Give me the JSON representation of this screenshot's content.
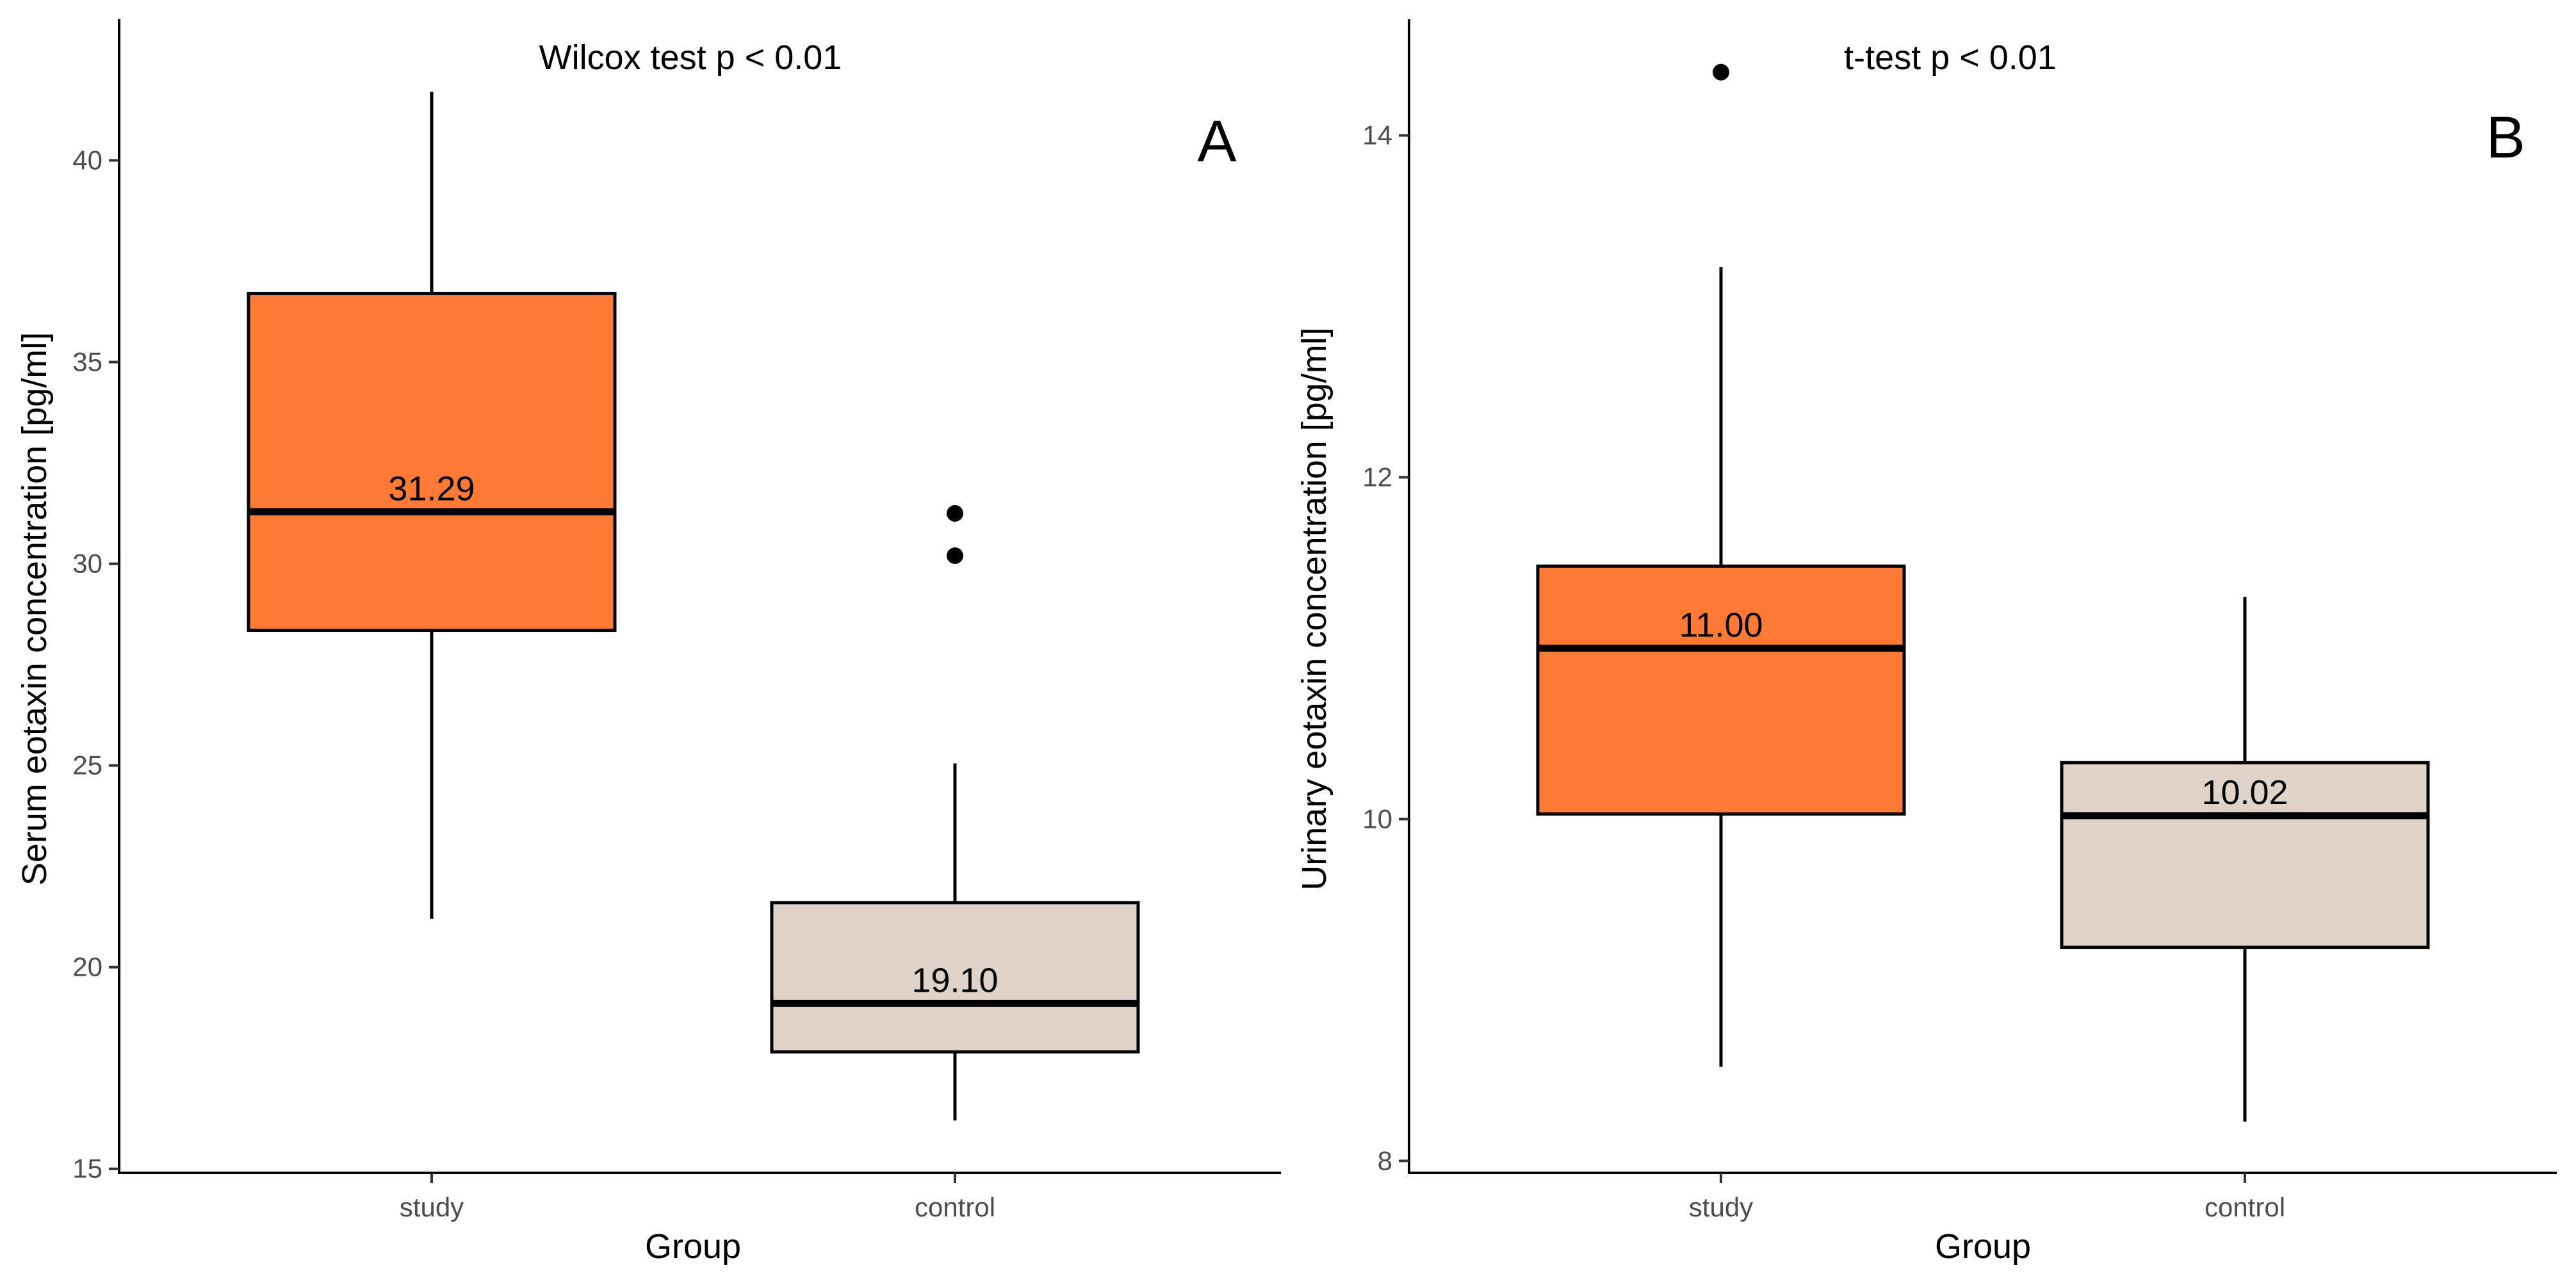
{
  "chart_data": [
    {
      "type": "box",
      "panel_label": "A",
      "annotation": "Wilcox test p < 0.01",
      "xlabel": "Group",
      "ylabel": "Serum eotaxin concentration [pg/ml]",
      "ylim": [
        14.9,
        43.5
      ],
      "yticks": [
        15,
        20,
        25,
        30,
        35,
        40
      ],
      "categories": [
        "study",
        "control"
      ],
      "colors": [
        "#FF7B35",
        "#E0D4CA"
      ],
      "boxes": [
        {
          "category": "study",
          "whisker_low": 21.2,
          "q1": 28.35,
          "median": 31.29,
          "q3": 36.7,
          "whisker_high": 41.7,
          "median_label": "31.29",
          "outliers": []
        },
        {
          "category": "control",
          "whisker_low": 16.2,
          "q1": 17.9,
          "median": 19.1,
          "q3": 21.6,
          "whisker_high": 25.05,
          "median_label": "19.10",
          "outliers": [
            31.25,
            30.2
          ]
        }
      ]
    },
    {
      "type": "box",
      "panel_label": "B",
      "annotation": "t-test p < 0.01",
      "xlabel": "Group",
      "ylabel": "Urinary eotaxin concentration [pg/ml]",
      "ylim": [
        7.93,
        14.68
      ],
      "yticks": [
        8,
        10,
        12,
        14
      ],
      "categories": [
        "study",
        "control"
      ],
      "colors": [
        "#FF7B35",
        "#E0D4CA"
      ],
      "boxes": [
        {
          "category": "study",
          "whisker_low": 8.55,
          "q1": 10.03,
          "median": 11.0,
          "q3": 11.48,
          "whisker_high": 13.23,
          "median_label": "11.00",
          "outliers": [
            14.37
          ]
        },
        {
          "category": "control",
          "whisker_low": 8.23,
          "q1": 9.25,
          "median": 10.02,
          "q3": 10.33,
          "whisker_high": 11.3,
          "median_label": "10.02",
          "outliers": []
        }
      ]
    }
  ]
}
